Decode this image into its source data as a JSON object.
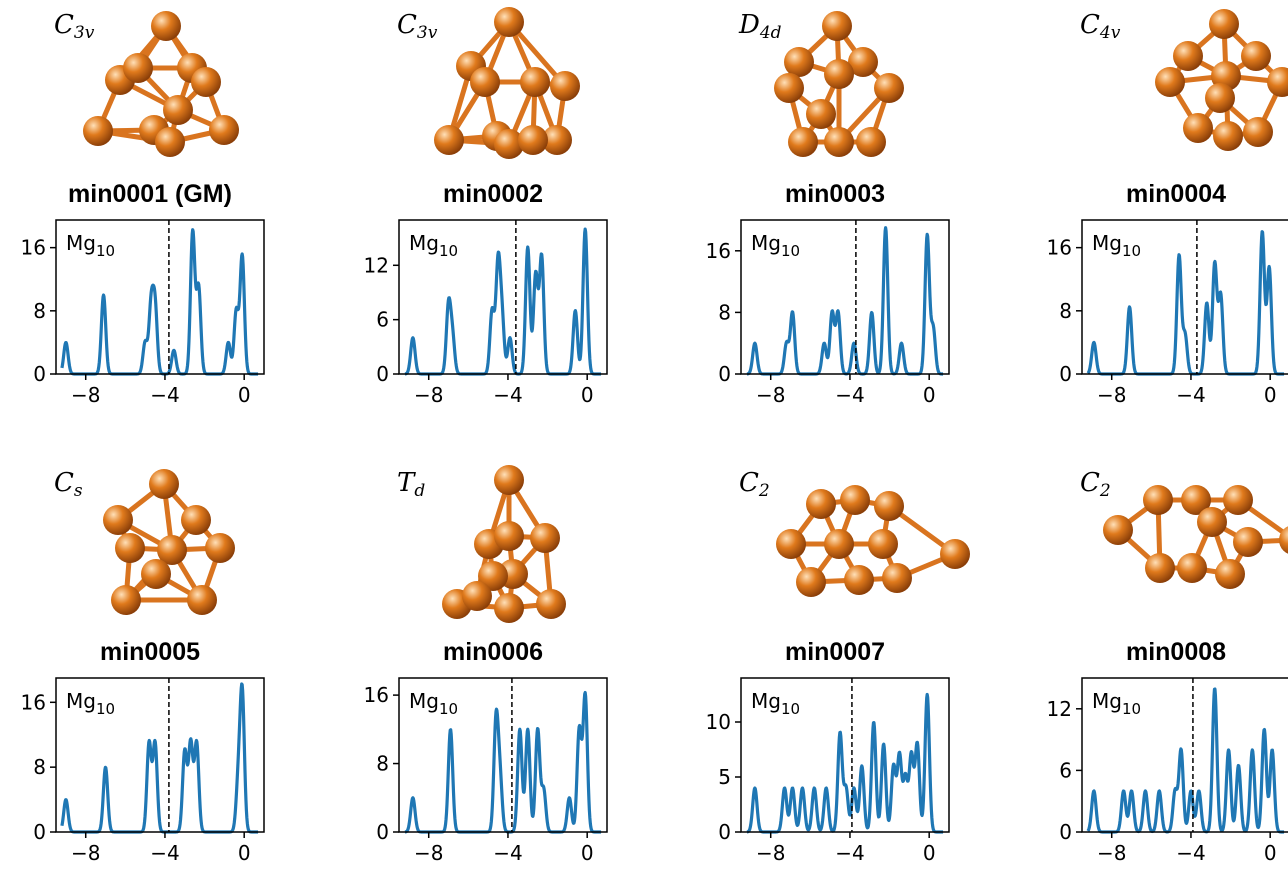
{
  "colors": {
    "line": "#1f77b4",
    "atom": "#e07a1c",
    "bond": "#d9741f",
    "fermi": "#000000"
  },
  "chart_data": [
    {
      "type": "line",
      "title": "min0001 (GM)",
      "symmetry_base": "C",
      "symmetry_sub": "3v",
      "label_main": "Mg",
      "label_sub": "10",
      "xlim": [
        -9.5,
        1
      ],
      "ylim": [
        0,
        19.5
      ],
      "yticks": [
        0,
        8,
        16
      ],
      "xticks": [
        -8,
        -4,
        0
      ],
      "fermi": -3.8,
      "peaks": [
        [
          -9,
          4
        ],
        [
          -7.1,
          10
        ],
        [
          -5,
          4
        ],
        [
          -4.7,
          8.5
        ],
        [
          -4.5,
          8.5
        ],
        [
          -3.55,
          3
        ],
        [
          -2.6,
          18
        ],
        [
          -2.3,
          11
        ],
        [
          -0.8,
          4
        ],
        [
          -0.4,
          8
        ],
        [
          -0.1,
          15
        ]
      ]
    },
    {
      "type": "line",
      "title": "min0002",
      "symmetry_base": "C",
      "symmetry_sub": "3v",
      "label_main": "Mg",
      "label_sub": "10",
      "xlim": [
        -9.5,
        1
      ],
      "ylim": [
        0,
        17
      ],
      "yticks": [
        0,
        6,
        12
      ],
      "xticks": [
        -8,
        -4,
        0
      ],
      "fermi": -3.6,
      "peaks": [
        [
          -8.8,
          4
        ],
        [
          -7,
          7.5
        ],
        [
          -6.8,
          4
        ],
        [
          -4.8,
          7
        ],
        [
          -4.5,
          12
        ],
        [
          -4.3,
          6
        ],
        [
          -3.9,
          4
        ],
        [
          -3,
          14
        ],
        [
          -2.6,
          11
        ],
        [
          -2.3,
          13
        ],
        [
          -0.6,
          7
        ],
        [
          -0.1,
          16
        ]
      ]
    },
    {
      "type": "line",
      "title": "min0003",
      "symmetry_base": "D",
      "symmetry_sub": "4d",
      "label_main": "Mg",
      "label_sub": "10",
      "xlim": [
        -9.5,
        1
      ],
      "ylim": [
        0,
        20
      ],
      "yticks": [
        0,
        8,
        16
      ],
      "xticks": [
        -8,
        -4,
        0
      ],
      "fermi": -3.7,
      "peaks": [
        [
          -8.8,
          4
        ],
        [
          -7.2,
          4
        ],
        [
          -6.9,
          8
        ],
        [
          -5.3,
          4
        ],
        [
          -4.9,
          8
        ],
        [
          -4.6,
          8
        ],
        [
          -3.8,
          4
        ],
        [
          -2.9,
          8
        ],
        [
          -2.2,
          19
        ],
        [
          -1.4,
          4
        ],
        [
          -0.1,
          18
        ],
        [
          0.2,
          6
        ]
      ]
    },
    {
      "type": "line",
      "title": "min0004",
      "symmetry_base": "C",
      "symmetry_sub": "4v",
      "label_main": "Mg",
      "label_sub": "10",
      "xlim": [
        -9.5,
        1
      ],
      "ylim": [
        0,
        19.5
      ],
      "yticks": [
        0,
        8,
        16
      ],
      "xticks": [
        -8,
        -4,
        0
      ],
      "fermi": -3.7,
      "peaks": [
        [
          -8.9,
          4
        ],
        [
          -7.1,
          8.5
        ],
        [
          -4.6,
          15
        ],
        [
          -4.3,
          5
        ],
        [
          -3.2,
          9
        ],
        [
          -2.8,
          14
        ],
        [
          -2.5,
          10
        ],
        [
          -0.4,
          18
        ],
        [
          -0.05,
          13.5
        ]
      ]
    },
    {
      "type": "line",
      "title": "min0005",
      "symmetry_base": "C",
      "symmetry_sub": "s",
      "label_main": "Mg",
      "label_sub": "10",
      "xlim": [
        -9.5,
        1
      ],
      "ylim": [
        0,
        19
      ],
      "yticks": [
        0,
        8,
        16
      ],
      "xticks": [
        -8,
        -4,
        0
      ],
      "fermi": -3.8,
      "peaks": [
        [
          -9,
          4
        ],
        [
          -7,
          8
        ],
        [
          -4.8,
          11
        ],
        [
          -4.5,
          11
        ],
        [
          -3,
          10
        ],
        [
          -2.7,
          11
        ],
        [
          -2.4,
          11
        ],
        [
          -0.3,
          6
        ],
        [
          -0.1,
          17
        ]
      ]
    },
    {
      "type": "line",
      "title": "min0006",
      "symmetry_base": "T",
      "symmetry_sub": "d",
      "label_main": "Mg",
      "label_sub": "10",
      "xlim": [
        -9.5,
        1
      ],
      "ylim": [
        0,
        18
      ],
      "yticks": [
        0,
        8,
        16
      ],
      "xticks": [
        -8,
        -4,
        0
      ],
      "fermi": -3.8,
      "peaks": [
        [
          -8.8,
          4
        ],
        [
          -6.9,
          12
        ],
        [
          -4.6,
          13
        ],
        [
          -4.4,
          6
        ],
        [
          -3.4,
          12
        ],
        [
          -3,
          12
        ],
        [
          -2.5,
          12
        ],
        [
          -2.2,
          5
        ],
        [
          -0.9,
          4
        ],
        [
          -0.4,
          12
        ],
        [
          -0.1,
          16
        ]
      ]
    },
    {
      "type": "line",
      "title": "min0007",
      "symmetry_base": "C",
      "symmetry_sub": "2",
      "label_main": "Mg",
      "label_sub": "10",
      "xlim": [
        -9.5,
        1
      ],
      "ylim": [
        0,
        14
      ],
      "yticks": [
        0,
        5,
        10
      ],
      "xticks": [
        -8,
        -4,
        0
      ],
      "fermi": -3.9,
      "peaks": [
        [
          -8.8,
          4
        ],
        [
          -7.3,
          4
        ],
        [
          -6.9,
          4
        ],
        [
          -6.4,
          4
        ],
        [
          -5.8,
          4
        ],
        [
          -5.2,
          4
        ],
        [
          -4.5,
          9
        ],
        [
          -4.2,
          4
        ],
        [
          -3.8,
          4
        ],
        [
          -3.4,
          6
        ],
        [
          -2.8,
          10
        ],
        [
          -2.3,
          8
        ],
        [
          -1.8,
          6
        ],
        [
          -1.5,
          7
        ],
        [
          -1.2,
          5
        ],
        [
          -0.9,
          7
        ],
        [
          -0.6,
          8
        ],
        [
          -0.1,
          12.5
        ]
      ]
    },
    {
      "type": "line",
      "title": "min0008",
      "symmetry_base": "C",
      "symmetry_sub": "2",
      "label_main": "Mg",
      "label_sub": "10",
      "xlim": [
        -9.5,
        1
      ],
      "ylim": [
        0,
        15
      ],
      "yticks": [
        0,
        6,
        12
      ],
      "xticks": [
        -8,
        -4,
        0
      ],
      "fermi": -3.9,
      "peaks": [
        [
          -8.9,
          4
        ],
        [
          -7.4,
          4
        ],
        [
          -7,
          4
        ],
        [
          -6.3,
          4
        ],
        [
          -5.6,
          4
        ],
        [
          -4.8,
          4
        ],
        [
          -4.5,
          8
        ],
        [
          -4,
          4
        ],
        [
          -3.6,
          4
        ],
        [
          -2.8,
          14
        ],
        [
          -2.1,
          8
        ],
        [
          -1.6,
          6.5
        ],
        [
          -0.9,
          8
        ],
        [
          -0.3,
          10
        ],
        [
          0.1,
          8
        ]
      ]
    }
  ]
}
